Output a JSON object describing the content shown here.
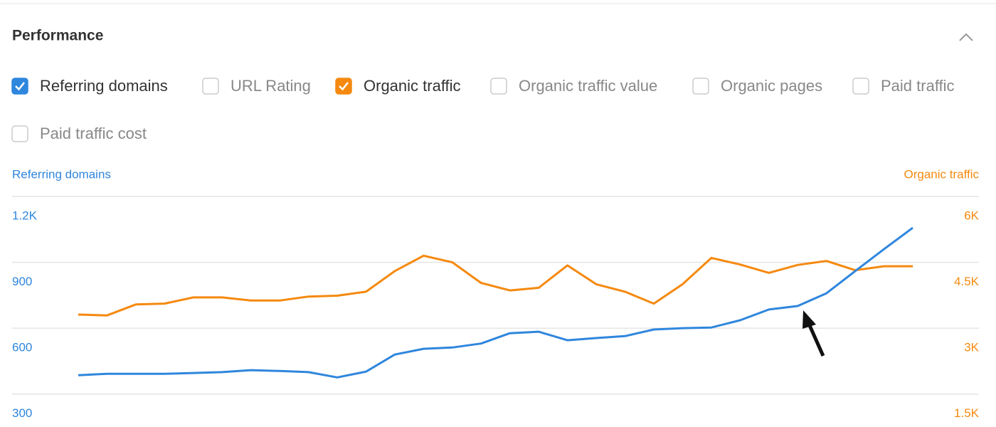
{
  "header": {
    "title": "Performance"
  },
  "checkboxes": [
    {
      "label": "Referring domains",
      "checked": true
    },
    {
      "label": "URL Rating",
      "checked": false
    },
    {
      "label": "Organic traffic",
      "checked": true
    },
    {
      "label": "Organic traffic value",
      "checked": false
    },
    {
      "label": "Organic pages",
      "checked": false
    },
    {
      "label": "Paid traffic",
      "checked": false
    },
    {
      "label": "Paid traffic cost",
      "checked": false
    }
  ],
  "chart_data": {
    "type": "line",
    "y_label": "Referring domains",
    "y2_label": "Organic traffic",
    "ylim": [
      150,
      1200
    ],
    "yticks": [
      300,
      600,
      900,
      {
        "value": 1200,
        "label": "1.2K"
      }
    ],
    "y2lim": [
      750,
      6000
    ],
    "y2ticks": [
      {
        "value": 1500,
        "label": "1.5K"
      },
      {
        "value": 3000,
        "label": "3K"
      },
      {
        "value": 4500,
        "label": "4.5K"
      },
      {
        "value": 6000,
        "label": "6K"
      }
    ],
    "grid": true,
    "series": [
      {
        "name": "Referring domains",
        "color": "#2f86dd",
        "values": [
          386,
          392,
          392,
          392,
          396,
          400,
          409,
          405,
          400,
          376,
          402,
          480,
          506,
          512,
          530,
          577,
          584,
          545,
          555,
          564,
          594,
          600,
          603,
          636,
          685,
          701,
          759,
          860,
          960,
          1057
        ]
      },
      {
        "name": "Organic traffic",
        "color": "#f5890f",
        "axis": "y2",
        "values": [
          3310,
          3290,
          3540,
          3560,
          3700,
          3700,
          3630,
          3630,
          3720,
          3740,
          3830,
          4300,
          4650,
          4500,
          4030,
          3860,
          3920,
          4430,
          4000,
          3830,
          3560,
          4000,
          4600,
          4450,
          4260,
          4440,
          4530,
          4320,
          4410,
          4410
        ]
      }
    ]
  }
}
